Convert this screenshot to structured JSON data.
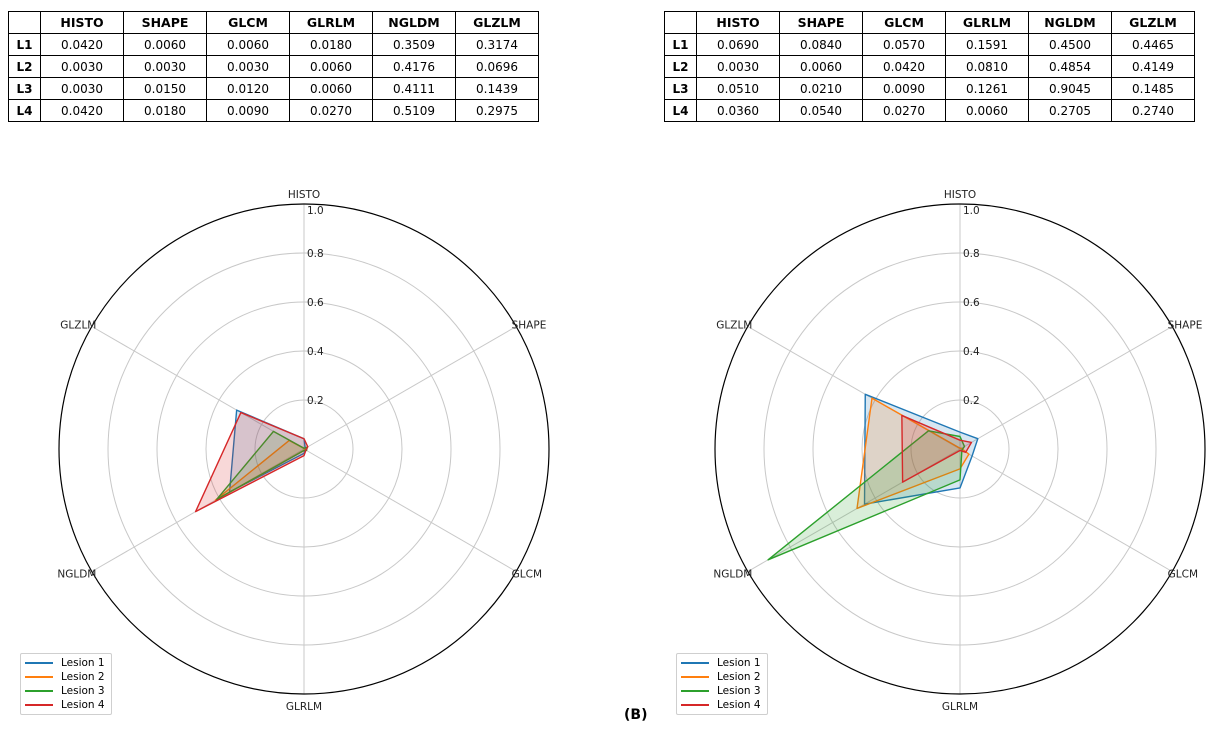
{
  "chart_data": [
    {
      "type": "radar",
      "axes": [
        "HISTO",
        "SHAPE",
        "GLCM",
        "GLRLM",
        "NGLDM",
        "GLZLM"
      ],
      "rlim": [
        0,
        1.0
      ],
      "rticks": [
        "0.2",
        "0.4",
        "0.6",
        "0.8",
        "1.0"
      ],
      "grid": true,
      "legend_placement": "lower-left",
      "series": [
        {
          "name": "Lesion 1",
          "values": [
            0.042,
            0.006,
            0.006,
            0.018,
            0.3509,
            0.3174
          ]
        },
        {
          "name": "Lesion 2",
          "values": [
            0.003,
            0.003,
            0.003,
            0.006,
            0.4176,
            0.0696
          ]
        },
        {
          "name": "Lesion 3",
          "values": [
            0.003,
            0.015,
            0.012,
            0.006,
            0.4111,
            0.1439
          ]
        },
        {
          "name": "Lesion 4",
          "values": [
            0.042,
            0.018,
            0.009,
            0.027,
            0.5109,
            0.2975
          ]
        }
      ],
      "table": {
        "columns": [
          "",
          "HISTO",
          "SHAPE",
          "GLCM",
          "GLRLM",
          "NGLDM",
          "GLZLM"
        ],
        "rows": [
          [
            "L1",
            "0.0420",
            "0.0060",
            "0.0060",
            "0.0180",
            "0.3509",
            "0.3174"
          ],
          [
            "L2",
            "0.0030",
            "0.0030",
            "0.0030",
            "0.0060",
            "0.4176",
            "0.0696"
          ],
          [
            "L3",
            "0.0030",
            "0.0150",
            "0.0120",
            "0.0060",
            "0.4111",
            "0.1439"
          ],
          [
            "L4",
            "0.0420",
            "0.0180",
            "0.0090",
            "0.0270",
            "0.5109",
            "0.2975"
          ]
        ]
      }
    },
    {
      "type": "radar",
      "panel_label": "(B)",
      "axes": [
        "HISTO",
        "SHAPE",
        "GLCM",
        "GLRLM",
        "NGLDM",
        "GLZLM"
      ],
      "rlim": [
        0,
        1.0
      ],
      "rticks": [
        "0.2",
        "0.4",
        "0.6",
        "0.8",
        "1.0"
      ],
      "grid": true,
      "legend_placement": "lower-left",
      "series": [
        {
          "name": "Lesion 1",
          "values": [
            0.069,
            0.084,
            0.057,
            0.1591,
            0.45,
            0.4465
          ]
        },
        {
          "name": "Lesion 2",
          "values": [
            0.003,
            0.006,
            0.042,
            0.081,
            0.4854,
            0.4149
          ]
        },
        {
          "name": "Lesion 3",
          "values": [
            0.051,
            0.021,
            0.009,
            0.1261,
            0.9045,
            0.1485
          ]
        },
        {
          "name": "Lesion 4",
          "values": [
            0.036,
            0.054,
            0.027,
            0.006,
            0.2705,
            0.274
          ]
        }
      ],
      "table": {
        "columns": [
          "",
          "HISTO",
          "SHAPE",
          "GLCM",
          "GLRLM",
          "NGLDM",
          "GLZLM"
        ],
        "rows": [
          [
            "L1",
            "0.0690",
            "0.0840",
            "0.0570",
            "0.1591",
            "0.4500",
            "0.4465"
          ],
          [
            "L2",
            "0.0030",
            "0.0060",
            "0.0420",
            "0.0810",
            "0.4854",
            "0.4149"
          ],
          [
            "L3",
            "0.0510",
            "0.0210",
            "0.0090",
            "0.1261",
            "0.9045",
            "0.1485"
          ],
          [
            "L4",
            "0.0360",
            "0.0540",
            "0.0270",
            "0.0060",
            "0.2705",
            "0.2740"
          ]
        ]
      }
    }
  ],
  "colors": {
    "series": [
      "#1f77b4",
      "#ff7f0e",
      "#2ca02c",
      "#d62728"
    ],
    "grid": "#c8c8c8",
    "outer_circle": "#000000"
  }
}
